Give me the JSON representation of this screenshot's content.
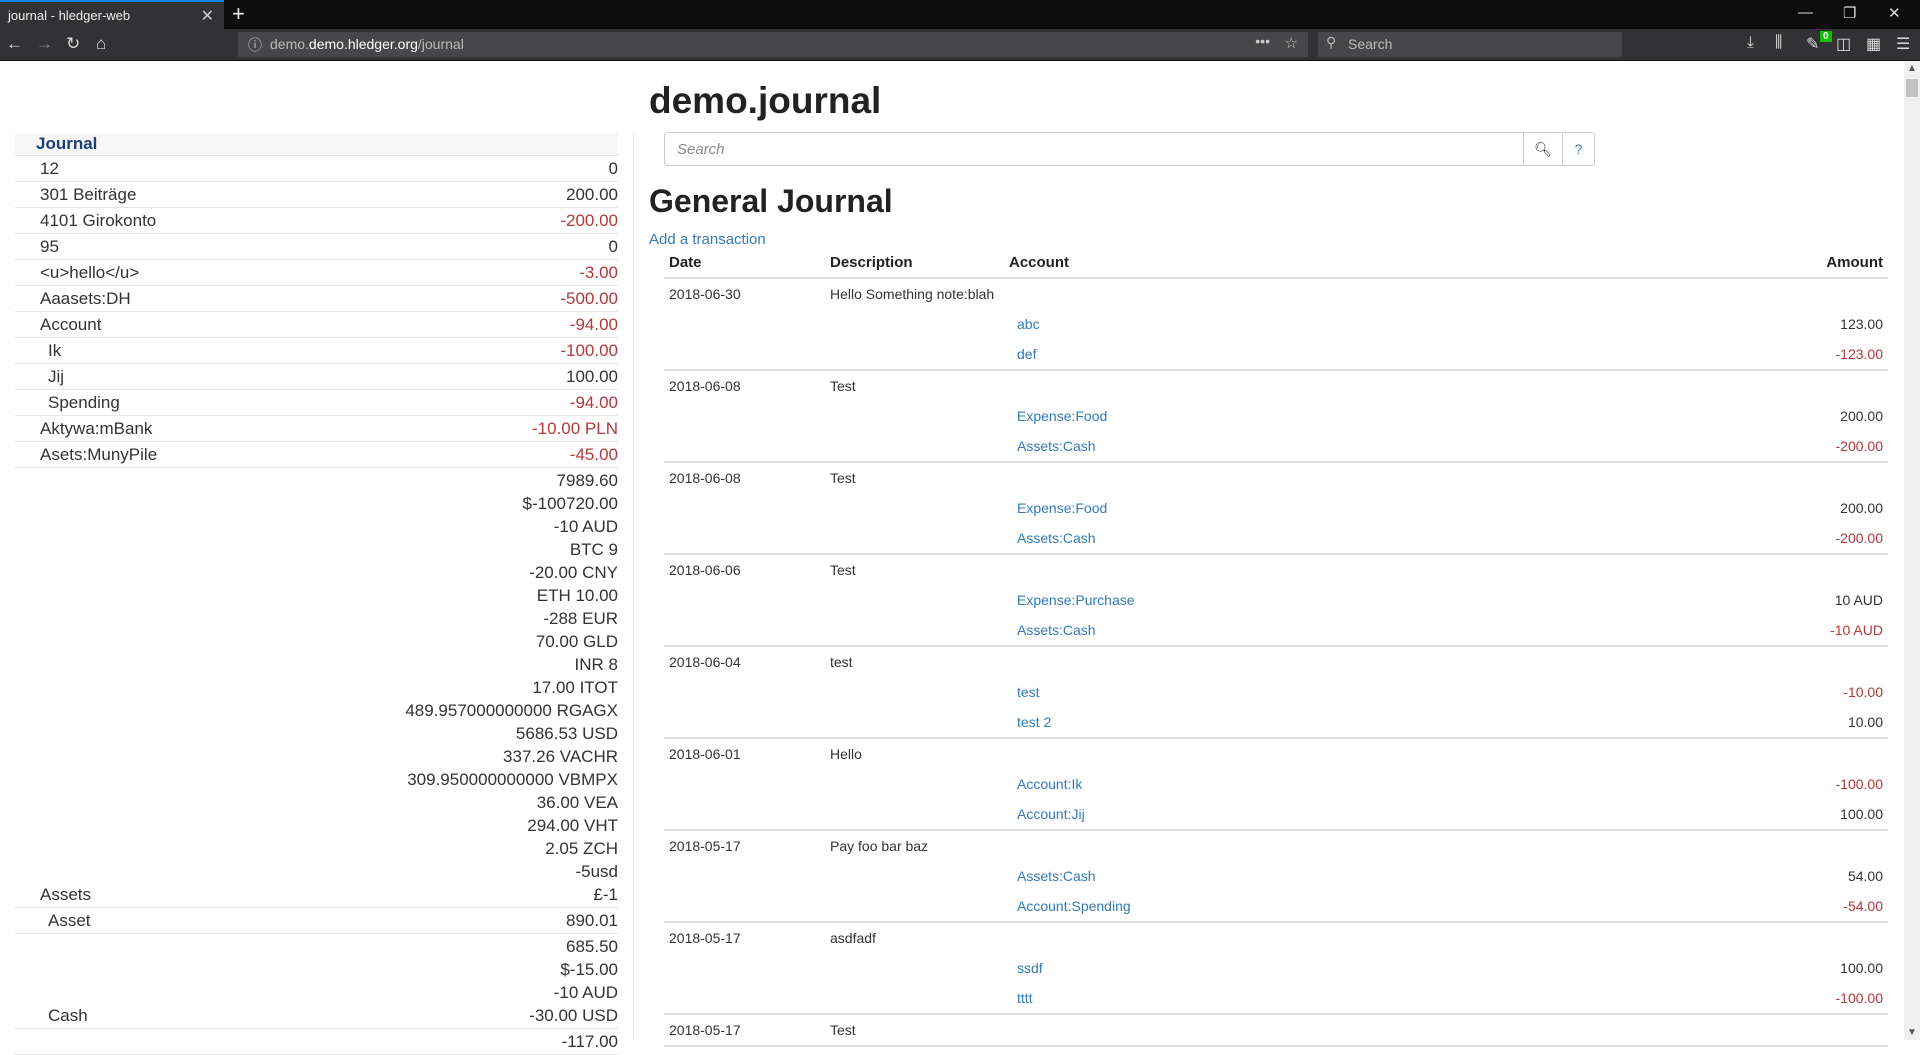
{
  "browser": {
    "tab_title": "journal - hledger-web",
    "url_host": "demo.hledger.org",
    "url_path": "/journal",
    "url_prefix": "demo.",
    "search_placeholder": "Search",
    "badge_count": "0"
  },
  "sidebar": {
    "heading": "Journal",
    "rows": [
      {
        "name": "12",
        "level": 1,
        "amounts": [
          "0"
        ],
        "negative": false
      },
      {
        "name": "301 Beiträge",
        "level": 1,
        "amounts": [
          "200.00"
        ],
        "negative": false
      },
      {
        "name": "4101 Girokonto",
        "level": 1,
        "amounts": [
          "-200.00"
        ],
        "negative": true
      },
      {
        "name": "95",
        "level": 1,
        "amounts": [
          "0"
        ],
        "negative": false
      },
      {
        "name": "<u>hello</u>",
        "level": 1,
        "amounts": [
          "-3.00"
        ],
        "negative": true
      },
      {
        "name": "Aaasets:DH",
        "level": 1,
        "amounts": [
          "-500.00"
        ],
        "negative": true
      },
      {
        "name": "Account",
        "level": 1,
        "amounts": [
          "-94.00"
        ],
        "negative": true
      },
      {
        "name": "Ik",
        "level": 2,
        "amounts": [
          "-100.00"
        ],
        "negative": true
      },
      {
        "name": "Jij",
        "level": 2,
        "amounts": [
          "100.00"
        ],
        "negative": false
      },
      {
        "name": "Spending",
        "level": 2,
        "amounts": [
          "-94.00"
        ],
        "negative": true
      },
      {
        "name": "Aktywa:mBank",
        "level": 1,
        "amounts": [
          "-10.00 PLN"
        ],
        "negative": true
      },
      {
        "name": "Asets:MunyPile",
        "level": 1,
        "amounts": [
          "-45.00"
        ],
        "negative": true
      },
      {
        "name": "Assets",
        "level": 1,
        "amounts": [
          "7989.60",
          "$-100720.00",
          "-10 AUD",
          "BTC 9",
          "-20.00 CNY",
          "ETH 10.00",
          "-288 EUR",
          "70.00 GLD",
          "INR 8",
          "17.00 ITOT",
          "489.957000000000 RGAGX",
          "5686.53 USD",
          "337.26 VACHR",
          "309.950000000000 VBMPX",
          "36.00 VEA",
          "294.00 VHT",
          "2.05 ZCH",
          "-5usd",
          "£-1"
        ],
        "negative": false
      },
      {
        "name": "Asset",
        "level": 2,
        "amounts": [
          "890.01"
        ],
        "negative": false
      },
      {
        "name": "Cash",
        "level": 2,
        "amounts": [
          "685.50",
          "$-15.00",
          "-10 AUD",
          "-30.00 USD"
        ],
        "negative": false
      },
      {
        "name": "",
        "level": 2,
        "amounts": [
          "-117.00"
        ],
        "negative": false
      }
    ]
  },
  "main": {
    "title": "demo.journal",
    "search_placeholder": "Search",
    "help_label": "?",
    "section_title": "General Journal",
    "add_transaction": "Add a transaction",
    "columns": [
      "Date",
      "Description",
      "Account",
      "Amount"
    ],
    "transactions": [
      {
        "date": "2018-06-30",
        "description": "Hello Something note:blah",
        "postings": [
          {
            "account": "abc",
            "amount": "123.00",
            "negative": false
          },
          {
            "account": "def",
            "amount": "-123.00",
            "negative": true
          }
        ]
      },
      {
        "date": "2018-06-08",
        "description": "Test",
        "postings": [
          {
            "account": "Expense:Food",
            "amount": "200.00",
            "negative": false
          },
          {
            "account": "Assets:Cash",
            "amount": "-200.00",
            "negative": true
          }
        ]
      },
      {
        "date": "2018-06-08",
        "description": "Test",
        "postings": [
          {
            "account": "Expense:Food",
            "amount": "200.00",
            "negative": false
          },
          {
            "account": "Assets:Cash",
            "amount": "-200.00",
            "negative": true
          }
        ]
      },
      {
        "date": "2018-06-06",
        "description": "Test",
        "postings": [
          {
            "account": "Expense:Purchase",
            "amount": "10 AUD",
            "negative": false
          },
          {
            "account": "Assets:Cash",
            "amount": "-10 AUD",
            "negative": true
          }
        ]
      },
      {
        "date": "2018-06-04",
        "description": "test",
        "postings": [
          {
            "account": "test",
            "amount": "-10.00",
            "negative": true
          },
          {
            "account": "test 2",
            "amount": "10.00",
            "negative": false
          }
        ]
      },
      {
        "date": "2018-06-01",
        "description": "Hello",
        "postings": [
          {
            "account": "Account:Ik",
            "amount": "-100.00",
            "negative": true
          },
          {
            "account": "Account:Jij",
            "amount": "100.00",
            "negative": false
          }
        ]
      },
      {
        "date": "2018-05-17",
        "description": "Pay foo bar baz",
        "postings": [
          {
            "account": "Assets:Cash",
            "amount": "54.00",
            "negative": false
          },
          {
            "account": "Account:Spending",
            "amount": "-54.00",
            "negative": true
          }
        ]
      },
      {
        "date": "2018-05-17",
        "description": "asdfadf",
        "postings": [
          {
            "account": "ssdf",
            "amount": "100.00",
            "negative": false
          },
          {
            "account": "tttt",
            "amount": "-100.00",
            "negative": true
          }
        ]
      },
      {
        "date": "2018-05-17",
        "description": "Test",
        "postings": []
      }
    ]
  },
  "colors": {
    "negative": "#b03a3a",
    "link": "#337ab7",
    "sidebar_heading": "#1c3f7a"
  }
}
